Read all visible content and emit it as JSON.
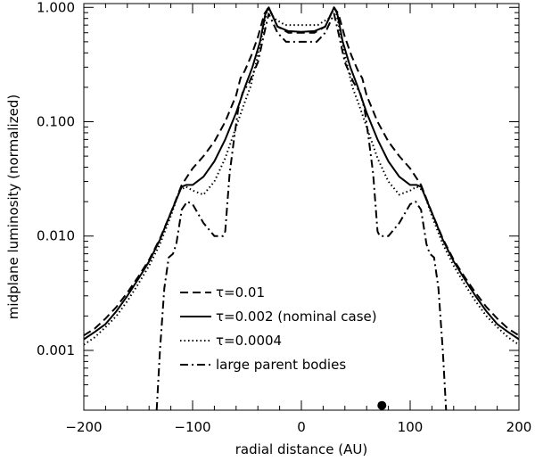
{
  "chart_data": {
    "type": "line",
    "title": "",
    "xlabel": "radial distance (AU)",
    "ylabel": "midplane luminosity (normalized)",
    "xlim": [
      -200,
      200
    ],
    "ylim": [
      0.0003,
      1.08
    ],
    "yscale": "log",
    "grid": false,
    "legend_placement": "bottom-center",
    "x_ticks": [
      {
        "value": -200,
        "label": "−200"
      },
      {
        "value": -100,
        "label": "−100"
      },
      {
        "value": 0,
        "label": "0"
      },
      {
        "value": 100,
        "label": "100"
      },
      {
        "value": 200,
        "label": "200"
      }
    ],
    "y_ticks": [
      {
        "value": 0.001,
        "label": "0.001"
      },
      {
        "value": 0.01,
        "label": "0.010"
      },
      {
        "value": 0.1,
        "label": "0.100"
      },
      {
        "value": 1.0,
        "label": "1.000"
      }
    ],
    "series": [
      {
        "name": "τ=0.01",
        "dash": "dash",
        "half": [
          [
            0,
            0.6
          ],
          [
            12,
            0.6
          ],
          [
            22,
            0.68
          ],
          [
            30,
            1.0
          ],
          [
            34,
            0.88
          ],
          [
            40,
            0.55
          ],
          [
            46,
            0.38
          ],
          [
            52,
            0.28
          ],
          [
            56,
            0.24
          ],
          [
            60,
            0.17
          ],
          [
            70,
            0.1
          ],
          [
            80,
            0.067
          ],
          [
            90,
            0.05
          ],
          [
            100,
            0.039
          ],
          [
            110,
            0.028
          ],
          [
            120,
            0.016
          ],
          [
            130,
            0.0095
          ],
          [
            140,
            0.0062
          ],
          [
            150,
            0.0044
          ],
          [
            160,
            0.0032
          ],
          [
            170,
            0.0024
          ],
          [
            180,
            0.0019
          ],
          [
            190,
            0.00155
          ],
          [
            200,
            0.00135
          ]
        ]
      },
      {
        "name": "τ=0.002 (nominal case)",
        "dash": "solid",
        "half": [
          [
            0,
            0.61
          ],
          [
            12,
            0.62
          ],
          [
            22,
            0.68
          ],
          [
            30,
            1.0
          ],
          [
            33,
            0.88
          ],
          [
            38,
            0.5
          ],
          [
            45,
            0.3
          ],
          [
            52,
            0.2
          ],
          [
            60,
            0.12
          ],
          [
            70,
            0.07
          ],
          [
            80,
            0.045
          ],
          [
            90,
            0.033
          ],
          [
            100,
            0.028
          ],
          [
            106,
            0.028
          ],
          [
            110,
            0.027
          ],
          [
            120,
            0.016
          ],
          [
            130,
            0.0093
          ],
          [
            140,
            0.006
          ],
          [
            150,
            0.0042
          ],
          [
            160,
            0.003
          ],
          [
            170,
            0.0022
          ],
          [
            180,
            0.0017
          ],
          [
            190,
            0.00145
          ],
          [
            200,
            0.00125
          ]
        ]
      },
      {
        "name": "τ=0.0004",
        "dash": "dot",
        "half": [
          [
            0,
            0.7
          ],
          [
            15,
            0.7
          ],
          [
            25,
            0.8
          ],
          [
            31,
            1.0
          ],
          [
            35,
            0.65
          ],
          [
            40,
            0.38
          ],
          [
            47,
            0.2
          ],
          [
            53,
            0.14
          ],
          [
            60,
            0.09
          ],
          [
            70,
            0.048
          ],
          [
            80,
            0.03
          ],
          [
            90,
            0.023
          ],
          [
            100,
            0.025
          ],
          [
            106,
            0.027
          ],
          [
            112,
            0.025
          ],
          [
            120,
            0.015
          ],
          [
            130,
            0.0085
          ],
          [
            140,
            0.0055
          ],
          [
            150,
            0.0038
          ],
          [
            160,
            0.0027
          ],
          [
            170,
            0.002
          ],
          [
            180,
            0.0016
          ],
          [
            190,
            0.0013
          ],
          [
            200,
            0.00112
          ]
        ]
      },
      {
        "name": "large parent bodies",
        "dash": "dashdot",
        "half": [
          [
            0,
            0.5
          ],
          [
            14,
            0.5
          ],
          [
            22,
            0.6
          ],
          [
            30,
            0.88
          ],
          [
            34,
            0.6
          ],
          [
            40,
            0.33
          ],
          [
            48,
            0.22
          ],
          [
            54,
            0.18
          ],
          [
            58,
            0.13
          ],
          [
            62,
            0.07
          ],
          [
            66,
            0.035
          ],
          [
            70,
            0.011
          ],
          [
            72,
            0.01
          ],
          [
            80,
            0.01
          ],
          [
            90,
            0.013
          ],
          [
            100,
            0.019
          ],
          [
            105,
            0.02
          ],
          [
            110,
            0.017
          ],
          [
            115,
            0.0085
          ],
          [
            118,
            0.007
          ],
          [
            122,
            0.0065
          ],
          [
            126,
            0.0035
          ],
          [
            130,
            0.001
          ],
          [
            133,
            0.0003
          ]
        ]
      }
    ],
    "markers": [
      {
        "x": 74,
        "y": 0.00033
      }
    ]
  }
}
